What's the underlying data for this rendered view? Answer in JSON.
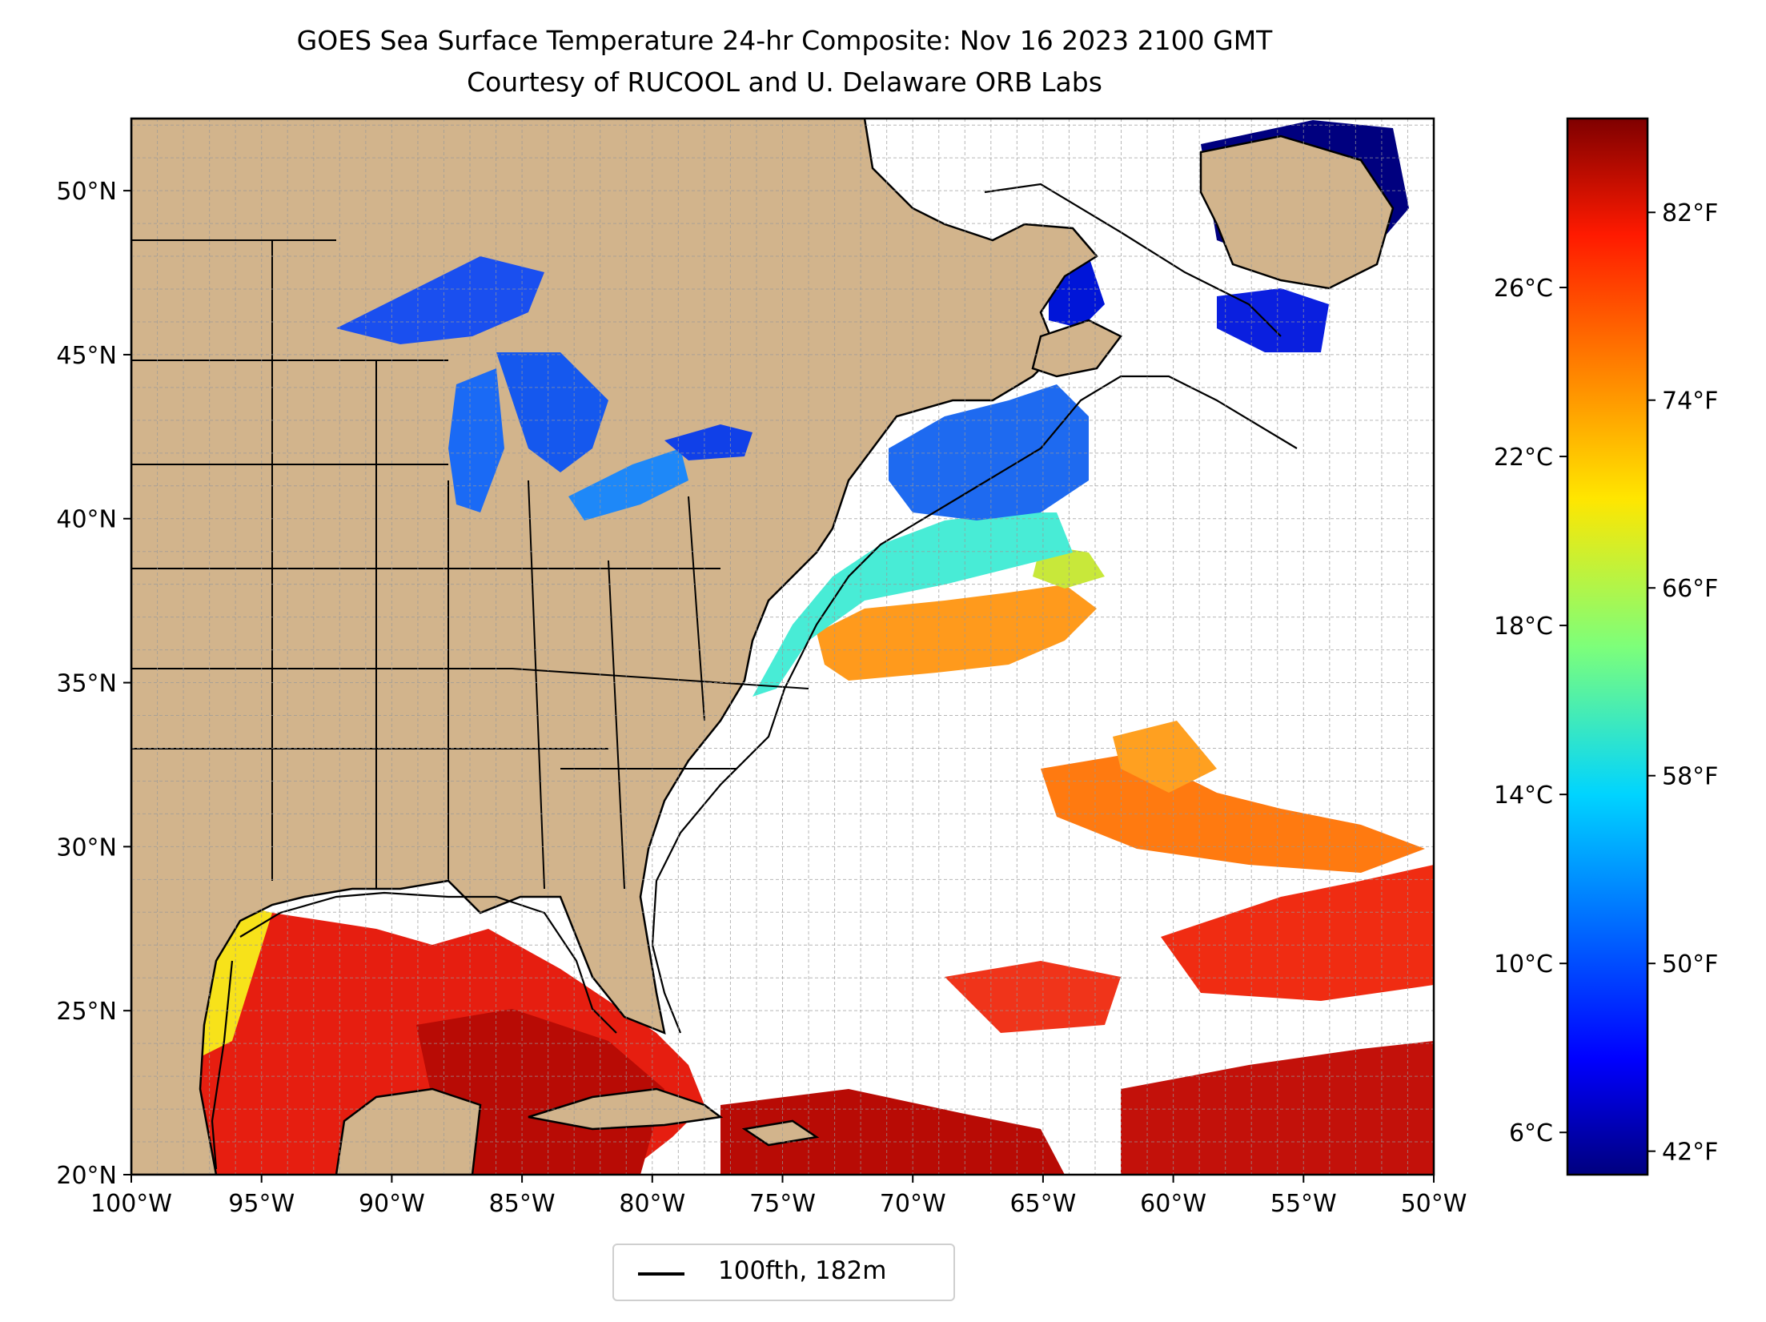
{
  "title": "GOES Sea Surface Temperature 24-hr Composite: Nov 16 2023 2100 GMT",
  "subtitle": "Courtesy of RUCOOL and U. Delaware ORB Labs",
  "map": {
    "extent": {
      "lon_min": -100,
      "lon_max": -50,
      "lat_min": 20,
      "lat_max": 52.2
    },
    "lat_ticks": [
      {
        "lat": 50,
        "label": "50°N"
      },
      {
        "lat": 45,
        "label": "45°N"
      },
      {
        "lat": 40,
        "label": "40°N"
      },
      {
        "lat": 35,
        "label": "35°N"
      },
      {
        "lat": 30,
        "label": "30°N"
      },
      {
        "lat": 25,
        "label": "25°N"
      },
      {
        "lat": 20,
        "label": "20°N"
      }
    ],
    "lon_ticks": [
      {
        "lon": -100,
        "label": "100°W"
      },
      {
        "lon": -95,
        "label": "95°W"
      },
      {
        "lon": -90,
        "label": "90°W"
      },
      {
        "lon": -85,
        "label": "85°W"
      },
      {
        "lon": -80,
        "label": "80°W"
      },
      {
        "lon": -75,
        "label": "75°W"
      },
      {
        "lon": -70,
        "label": "70°W"
      },
      {
        "lon": -65,
        "label": "65°W"
      },
      {
        "lon": -60,
        "label": "60°W"
      },
      {
        "lon": -55,
        "label": "55°W"
      },
      {
        "lon": -50,
        "label": "50°W"
      }
    ],
    "gridlines": "dashed every 1°",
    "land_color": "#d2b48c",
    "ocean_nodata_color": "#ffffff"
  },
  "colorbar": {
    "colormap": "jet",
    "range_c": [
      5,
      30
    ],
    "celsius_ticks": [
      {
        "value": 6,
        "label": "6°C"
      },
      {
        "value": 10,
        "label": "10°C"
      },
      {
        "value": 14,
        "label": "14°C"
      },
      {
        "value": 18,
        "label": "18°C"
      },
      {
        "value": 22,
        "label": "22°C"
      },
      {
        "value": 26,
        "label": "26°C"
      }
    ],
    "fahrenheit_ticks": [
      {
        "value": 42,
        "label": "42°F"
      },
      {
        "value": 50,
        "label": "50°F"
      },
      {
        "value": 58,
        "label": "58°F"
      },
      {
        "value": 66,
        "label": "66°F"
      },
      {
        "value": 74,
        "label": "74°F"
      },
      {
        "value": 82,
        "label": "82°F"
      }
    ]
  },
  "legend": {
    "label": "100fth, 182m",
    "placement": "bottom-center"
  }
}
